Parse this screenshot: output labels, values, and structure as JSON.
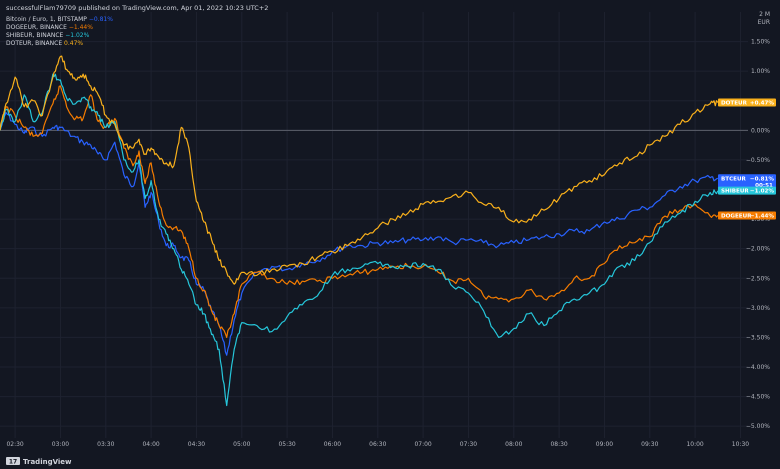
{
  "header": {
    "publisher_line": "successfulFlam79709 published on TradingView.com, Apr 01, 2022 10:23 UTC+2"
  },
  "footer": {
    "brand": "TradingView",
    "logo_glyph": "17"
  },
  "axis": {
    "unit_top": "2 M",
    "unit_bottom": "EUR"
  },
  "colors": {
    "background": "#131722",
    "grid": "#1e2230",
    "baseline": "#5d606b",
    "text": "#b2b5be",
    "btc": "#2962ff",
    "doge": "#f57c00",
    "shib": "#26c6da",
    "dot": "#f9b01b"
  },
  "legend": [
    {
      "label": "Bitcoin / Euro, 1, BITSTAMP",
      "value": "−0.81%",
      "series": "BTCEUR"
    },
    {
      "label": "DOGEEUR, BINANCE",
      "value": "−1.44%",
      "series": "DOGEEUR"
    },
    {
      "label": "SHIBEUR, BINANCE",
      "value": "−1.02%",
      "series": "SHIBEUR"
    },
    {
      "label": "DOTEUR, BINANCE",
      "value": "0.47%",
      "series": "DOTEUR"
    }
  ],
  "price_tags": [
    {
      "series": "DOTEUR",
      "label": "DOTEUR",
      "value": "+0.47%"
    },
    {
      "series": "BTCEUR",
      "label": "BTCEUR",
      "value": "−0.81%",
      "countdown": "00:51"
    },
    {
      "series": "SHIBEUR",
      "label": "SHIBEUR",
      "value": "−1.02%"
    },
    {
      "series": "DOGEEUR",
      "label": "DOGEEUR",
      "value": "−1.44%"
    }
  ],
  "chart_data": {
    "type": "line",
    "x_unit": "time (HH:MM)",
    "x_range": [
      "02:20",
      "10:35"
    ],
    "xticks": [
      "02:30",
      "03:00",
      "03:30",
      "04:00",
      "04:30",
      "05:00",
      "05:30",
      "06:00",
      "06:30",
      "07:00",
      "07:30",
      "08:00",
      "08:30",
      "09:00",
      "09:30",
      "10:00",
      "10:30"
    ],
    "ylim": [
      -5.2,
      2.0
    ],
    "yticks": [
      1.5,
      1.0,
      0.5,
      0.0,
      -0.5,
      -1.0,
      -1.5,
      -2.0,
      -2.5,
      -3.0,
      -3.5,
      -4.0,
      -4.5,
      -5.0
    ],
    "ytick_labels": [
      "1.50%",
      "1.00%",
      "0.50%",
      "0.00%",
      "−0.50%",
      "−1.00%",
      "−1.50%",
      "−2.00%",
      "−2.50%",
      "−3.00%",
      "−3.50%",
      "−4.00%",
      "−4.50%",
      "−5.00%"
    ],
    "baseline": 0.0,
    "grid": true,
    "legend_position": "top-left",
    "series": [
      {
        "name": "BTCEUR",
        "color": "#2962ff",
        "points": [
          [
            "02:20",
            0.0
          ],
          [
            "02:24",
            0.3
          ],
          [
            "02:30",
            0.1
          ],
          [
            "02:36",
            -0.05
          ],
          [
            "02:40",
            0.05
          ],
          [
            "02:48",
            -0.1
          ],
          [
            "02:55",
            0.05
          ],
          [
            "03:00",
            0.05
          ],
          [
            "03:08",
            -0.1
          ],
          [
            "03:15",
            -0.2
          ],
          [
            "03:20",
            -0.25
          ],
          [
            "03:25",
            -0.4
          ],
          [
            "03:30",
            -0.5
          ],
          [
            "03:36",
            -0.2
          ],
          [
            "03:42",
            -0.75
          ],
          [
            "03:48",
            -0.95
          ],
          [
            "03:52",
            -0.55
          ],
          [
            "03:56",
            -1.3
          ],
          [
            "04:00",
            -1.05
          ],
          [
            "04:05",
            -1.55
          ],
          [
            "04:10",
            -1.95
          ],
          [
            "04:15",
            -1.95
          ],
          [
            "04:20",
            -2.15
          ],
          [
            "04:25",
            -2.2
          ],
          [
            "04:30",
            -2.6
          ],
          [
            "04:35",
            -2.7
          ],
          [
            "04:40",
            -3.05
          ],
          [
            "04:45",
            -3.3
          ],
          [
            "04:50",
            -3.8
          ],
          [
            "04:55",
            -3.2
          ],
          [
            "05:00",
            -2.75
          ],
          [
            "05:10",
            -2.4
          ],
          [
            "05:20",
            -2.3
          ],
          [
            "05:30",
            -2.35
          ],
          [
            "05:40",
            -2.25
          ],
          [
            "05:50",
            -2.2
          ],
          [
            "06:00",
            -2.05
          ],
          [
            "06:10",
            -1.95
          ],
          [
            "06:20",
            -1.95
          ],
          [
            "06:30",
            -1.9
          ],
          [
            "06:40",
            -1.9
          ],
          [
            "06:50",
            -1.85
          ],
          [
            "07:00",
            -1.85
          ],
          [
            "07:10",
            -1.8
          ],
          [
            "07:20",
            -1.9
          ],
          [
            "07:30",
            -1.85
          ],
          [
            "07:40",
            -1.9
          ],
          [
            "07:50",
            -1.95
          ],
          [
            "08:00",
            -1.9
          ],
          [
            "08:10",
            -1.85
          ],
          [
            "08:20",
            -1.8
          ],
          [
            "08:30",
            -1.75
          ],
          [
            "08:40",
            -1.7
          ],
          [
            "08:50",
            -1.7
          ],
          [
            "09:00",
            -1.55
          ],
          [
            "09:10",
            -1.5
          ],
          [
            "09:20",
            -1.35
          ],
          [
            "09:30",
            -1.3
          ],
          [
            "09:40",
            -1.1
          ],
          [
            "09:50",
            -0.95
          ],
          [
            "10:00",
            -0.85
          ],
          [
            "10:10",
            -0.8
          ],
          [
            "10:15",
            -0.81
          ]
        ]
      },
      {
        "name": "DOGEEUR",
        "color": "#f57c00",
        "points": [
          [
            "02:20",
            0.0
          ],
          [
            "02:24",
            0.4
          ],
          [
            "02:30",
            0.25
          ],
          [
            "02:36",
            0.05
          ],
          [
            "02:42",
            -0.1
          ],
          [
            "02:48",
            -0.05
          ],
          [
            "02:55",
            0.45
          ],
          [
            "03:00",
            0.75
          ],
          [
            "03:05",
            0.35
          ],
          [
            "03:10",
            0.2
          ],
          [
            "03:15",
            0.2
          ],
          [
            "03:20",
            0.6
          ],
          [
            "03:25",
            0.15
          ],
          [
            "03:30",
            0.05
          ],
          [
            "03:36",
            0.2
          ],
          [
            "03:42",
            -0.3
          ],
          [
            "03:48",
            -0.6
          ],
          [
            "03:52",
            -0.35
          ],
          [
            "03:56",
            -0.9
          ],
          [
            "04:00",
            -0.55
          ],
          [
            "04:05",
            -1.2
          ],
          [
            "04:10",
            -1.6
          ],
          [
            "04:15",
            -1.65
          ],
          [
            "04:20",
            -1.7
          ],
          [
            "04:25",
            -2.0
          ],
          [
            "04:30",
            -2.5
          ],
          [
            "04:35",
            -2.7
          ],
          [
            "04:40",
            -3.05
          ],
          [
            "04:45",
            -3.3
          ],
          [
            "04:50",
            -3.5
          ],
          [
            "04:55",
            -3.1
          ],
          [
            "05:00",
            -2.6
          ],
          [
            "05:10",
            -2.4
          ],
          [
            "05:20",
            -2.5
          ],
          [
            "05:30",
            -2.6
          ],
          [
            "05:40",
            -2.55
          ],
          [
            "05:50",
            -2.55
          ],
          [
            "06:00",
            -2.5
          ],
          [
            "06:10",
            -2.45
          ],
          [
            "06:20",
            -2.4
          ],
          [
            "06:30",
            -2.35
          ],
          [
            "06:40",
            -2.3
          ],
          [
            "06:50",
            -2.3
          ],
          [
            "07:00",
            -2.3
          ],
          [
            "07:10",
            -2.4
          ],
          [
            "07:20",
            -2.55
          ],
          [
            "07:30",
            -2.5
          ],
          [
            "07:40",
            -2.8
          ],
          [
            "07:50",
            -2.85
          ],
          [
            "08:00",
            -2.85
          ],
          [
            "08:10",
            -2.7
          ],
          [
            "08:20",
            -2.85
          ],
          [
            "08:30",
            -2.75
          ],
          [
            "08:40",
            -2.5
          ],
          [
            "08:50",
            -2.5
          ],
          [
            "09:00",
            -2.25
          ],
          [
            "09:10",
            -1.95
          ],
          [
            "09:20",
            -1.9
          ],
          [
            "09:30",
            -1.8
          ],
          [
            "09:40",
            -1.45
          ],
          [
            "09:50",
            -1.35
          ],
          [
            "10:00",
            -1.25
          ],
          [
            "10:10",
            -1.45
          ],
          [
            "10:15",
            -1.44
          ]
        ]
      },
      {
        "name": "SHIBEUR",
        "color": "#26c6da",
        "points": [
          [
            "02:20",
            0.0
          ],
          [
            "02:24",
            0.35
          ],
          [
            "02:30",
            0.15
          ],
          [
            "02:36",
            0.6
          ],
          [
            "02:42",
            0.15
          ],
          [
            "02:48",
            0.3
          ],
          [
            "02:55",
            0.95
          ],
          [
            "03:00",
            0.85
          ],
          [
            "03:05",
            0.5
          ],
          [
            "03:10",
            0.45
          ],
          [
            "03:15",
            0.55
          ],
          [
            "03:20",
            0.4
          ],
          [
            "03:25",
            0.25
          ],
          [
            "03:30",
            0.05
          ],
          [
            "03:36",
            0.15
          ],
          [
            "03:42",
            -0.5
          ],
          [
            "03:48",
            -0.7
          ],
          [
            "03:52",
            -0.5
          ],
          [
            "03:56",
            -1.15
          ],
          [
            "04:00",
            -0.85
          ],
          [
            "04:05",
            -1.5
          ],
          [
            "04:10",
            -1.75
          ],
          [
            "04:15",
            -2.0
          ],
          [
            "04:20",
            -2.35
          ],
          [
            "04:25",
            -2.6
          ],
          [
            "04:30",
            -2.95
          ],
          [
            "04:35",
            -3.1
          ],
          [
            "04:40",
            -3.45
          ],
          [
            "04:45",
            -3.7
          ],
          [
            "04:50",
            -4.65
          ],
          [
            "04:55",
            -3.7
          ],
          [
            "05:00",
            -3.25
          ],
          [
            "05:10",
            -3.3
          ],
          [
            "05:20",
            -3.4
          ],
          [
            "05:30",
            -3.15
          ],
          [
            "05:40",
            -2.95
          ],
          [
            "05:50",
            -2.8
          ],
          [
            "06:00",
            -2.45
          ],
          [
            "06:10",
            -2.35
          ],
          [
            "06:20",
            -2.3
          ],
          [
            "06:30",
            -2.25
          ],
          [
            "06:40",
            -2.3
          ],
          [
            "06:50",
            -2.3
          ],
          [
            "07:00",
            -2.25
          ],
          [
            "07:10",
            -2.35
          ],
          [
            "07:20",
            -2.65
          ],
          [
            "07:30",
            -2.75
          ],
          [
            "07:40",
            -3.05
          ],
          [
            "07:50",
            -3.5
          ],
          [
            "08:00",
            -3.35
          ],
          [
            "08:10",
            -3.1
          ],
          [
            "08:20",
            -3.3
          ],
          [
            "08:30",
            -3.05
          ],
          [
            "08:40",
            -2.85
          ],
          [
            "08:50",
            -2.75
          ],
          [
            "09:00",
            -2.6
          ],
          [
            "09:10",
            -2.3
          ],
          [
            "09:20",
            -2.2
          ],
          [
            "09:30",
            -1.9
          ],
          [
            "09:40",
            -1.55
          ],
          [
            "09:50",
            -1.4
          ],
          [
            "10:00",
            -1.2
          ],
          [
            "10:10",
            -1.05
          ],
          [
            "10:15",
            -1.02
          ]
        ]
      },
      {
        "name": "DOTEUR",
        "color": "#f9b01b",
        "points": [
          [
            "02:20",
            0.0
          ],
          [
            "02:24",
            0.45
          ],
          [
            "02:30",
            0.9
          ],
          [
            "02:36",
            0.4
          ],
          [
            "02:42",
            0.5
          ],
          [
            "02:48",
            0.25
          ],
          [
            "02:55",
            0.9
          ],
          [
            "03:00",
            1.25
          ],
          [
            "03:05",
            1.0
          ],
          [
            "03:10",
            0.85
          ],
          [
            "03:15",
            0.95
          ],
          [
            "03:20",
            0.75
          ],
          [
            "03:25",
            0.6
          ],
          [
            "03:30",
            0.25
          ],
          [
            "03:36",
            0.1
          ],
          [
            "03:42",
            -0.25
          ],
          [
            "03:48",
            -0.3
          ],
          [
            "03:52",
            -0.15
          ],
          [
            "03:56",
            -0.4
          ],
          [
            "04:00",
            -0.3
          ],
          [
            "04:05",
            -0.45
          ],
          [
            "04:10",
            -0.55
          ],
          [
            "04:15",
            -0.6
          ],
          [
            "04:20",
            0.05
          ],
          [
            "04:25",
            -0.3
          ],
          [
            "04:30",
            -1.2
          ],
          [
            "04:35",
            -1.55
          ],
          [
            "04:40",
            -1.85
          ],
          [
            "04:45",
            -2.2
          ],
          [
            "04:50",
            -2.4
          ],
          [
            "04:55",
            -2.6
          ],
          [
            "05:00",
            -2.4
          ],
          [
            "05:10",
            -2.45
          ],
          [
            "05:20",
            -2.35
          ],
          [
            "05:30",
            -2.3
          ],
          [
            "05:40",
            -2.25
          ],
          [
            "05:50",
            -2.15
          ],
          [
            "06:00",
            -2.05
          ],
          [
            "06:10",
            -1.95
          ],
          [
            "06:20",
            -1.8
          ],
          [
            "06:30",
            -1.65
          ],
          [
            "06:40",
            -1.5
          ],
          [
            "06:50",
            -1.4
          ],
          [
            "07:00",
            -1.25
          ],
          [
            "07:10",
            -1.2
          ],
          [
            "07:20",
            -1.1
          ],
          [
            "07:30",
            -1.05
          ],
          [
            "07:40",
            -1.25
          ],
          [
            "07:50",
            -1.3
          ],
          [
            "08:00",
            -1.55
          ],
          [
            "08:10",
            -1.5
          ],
          [
            "08:20",
            -1.35
          ],
          [
            "08:30",
            -1.15
          ],
          [
            "08:40",
            -0.95
          ],
          [
            "08:50",
            -0.85
          ],
          [
            "09:00",
            -0.75
          ],
          [
            "09:10",
            -0.55
          ],
          [
            "09:20",
            -0.45
          ],
          [
            "09:30",
            -0.25
          ],
          [
            "09:40",
            -0.1
          ],
          [
            "09:50",
            0.1
          ],
          [
            "10:00",
            0.3
          ],
          [
            "10:10",
            0.45
          ],
          [
            "10:15",
            0.47
          ]
        ]
      }
    ]
  }
}
